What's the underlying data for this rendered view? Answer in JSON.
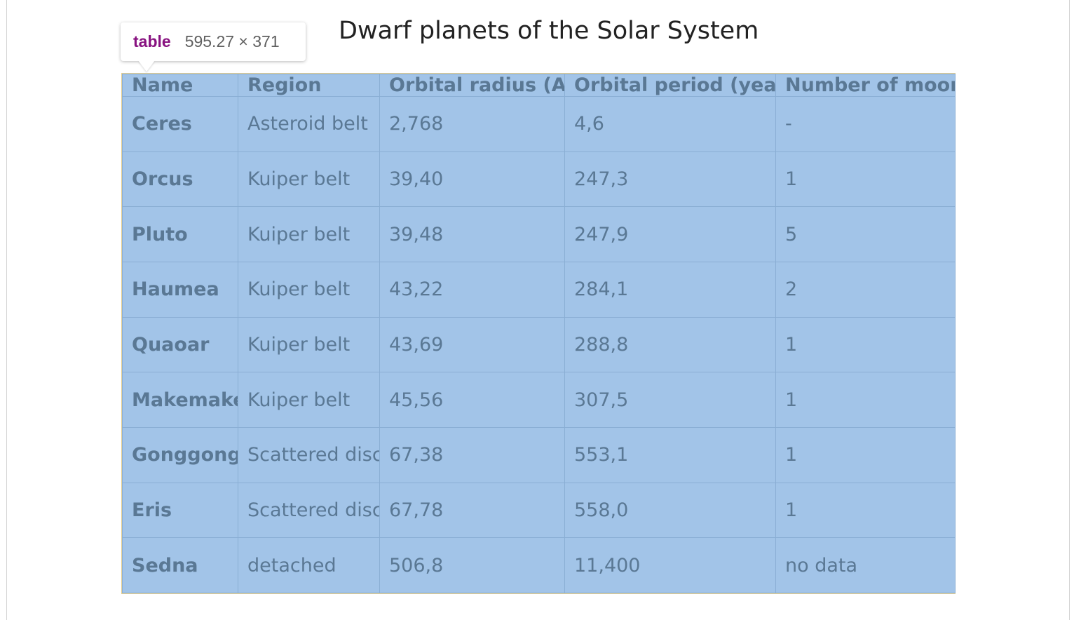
{
  "tooltip": {
    "tag": "table",
    "dimensions": "595.27 × 371"
  },
  "caption": "Dwarf planets of the Solar System",
  "table": {
    "headers": [
      "Name",
      "Region",
      "Orbital radius (AU)",
      "Orbital period (years)",
      "Number of moons"
    ],
    "rows": [
      [
        "Ceres",
        "Asteroid belt",
        "2,768",
        "4,6",
        "-"
      ],
      [
        "Orcus",
        "Kuiper belt",
        "39,40",
        "247,3",
        "1"
      ],
      [
        "Pluto",
        "Kuiper belt",
        "39,48",
        "247,9",
        "5"
      ],
      [
        "Haumea",
        "Kuiper belt",
        "43,22",
        "284,1",
        "2"
      ],
      [
        "Quaoar",
        "Kuiper belt",
        "43,69",
        "288,8",
        "1"
      ],
      [
        "Makemake",
        "Kuiper belt",
        "45,56",
        "307,5",
        "1"
      ],
      [
        "Gonggong",
        "Scattered disc",
        "67,38",
        "553,1",
        "1"
      ],
      [
        "Eris",
        "Scattered disc",
        "67,78",
        "558,0",
        "1"
      ],
      [
        "Sedna",
        "detached",
        "506,8",
        "11,400",
        "no data"
      ]
    ]
  },
  "colors": {
    "highlight": "#a2c4e8",
    "cell_text": "#5a7894",
    "tooltip_tag": "#881280"
  }
}
